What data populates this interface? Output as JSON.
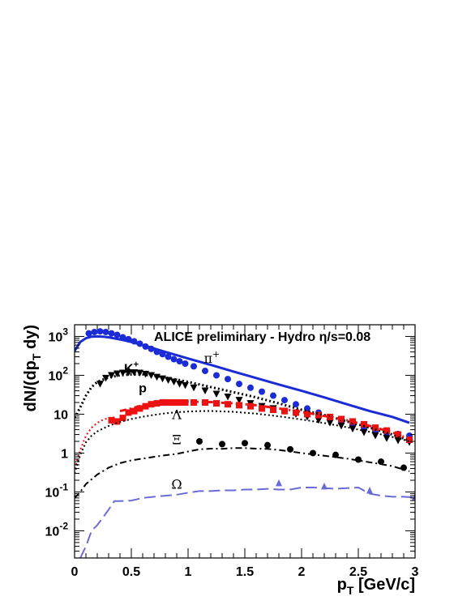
{
  "chart_data": {
    "type": "scatter",
    "title": "ALICE preliminary - Hydro η/s=0.08",
    "xlabel": "p_T [GeV/c]",
    "ylabel": "dN/(dp_T dy)",
    "xlim": [
      0,
      3
    ],
    "ylim": [
      0.002,
      2000
    ],
    "yscale": "log",
    "x_ticks": [
      "0",
      "0.5",
      "1",
      "1.5",
      "2",
      "2.5",
      "3"
    ],
    "y_ticks": [
      {
        "value": 0.01,
        "base": "10",
        "exp": "-2"
      },
      {
        "value": 0.1,
        "base": "10",
        "exp": "-1"
      },
      {
        "value": 1,
        "base": "1",
        "exp": ""
      },
      {
        "value": 10,
        "base": "10",
        "exp": ""
      },
      {
        "value": 100,
        "base": "10",
        "exp": "2"
      },
      {
        "value": 1000,
        "base": "10",
        "exp": "3"
      }
    ],
    "annotations": [
      {
        "id": "pi",
        "text": "π",
        "sup": "+",
        "x": 1.21,
        "y": 210,
        "style": "serif"
      },
      {
        "id": "k",
        "text": "K",
        "sup": "+",
        "x": 0.5,
        "y": 115,
        "style": "bold"
      },
      {
        "id": "p",
        "text": "p",
        "sup": "",
        "x": 0.6,
        "y": 36,
        "style": "bold"
      },
      {
        "id": "lambda",
        "text": "Λ",
        "sup": "",
        "x": 0.9,
        "y": 7.5,
        "style": "serif"
      },
      {
        "id": "xi",
        "text": "Ξ",
        "sup": "",
        "x": 0.9,
        "y": 1.7,
        "style": "serif"
      },
      {
        "id": "omega",
        "text": "Ω",
        "sup": "",
        "x": 0.9,
        "y": 0.12,
        "style": "serif"
      }
    ],
    "colors": {
      "pi": "#1b2bd6",
      "k": "#000000",
      "p": "#ee1111",
      "lambda": "#000000",
      "xi": "#000000",
      "omega": "#6b6bd6"
    },
    "series": [
      {
        "id": "pi_data",
        "marker": "circle",
        "color": "#1b2bd6",
        "points": [
          [
            0.125,
            1200
          ],
          [
            0.175,
            1300
          ],
          [
            0.225,
            1350
          ],
          [
            0.275,
            1300
          ],
          [
            0.325,
            1200
          ],
          [
            0.375,
            1100
          ],
          [
            0.425,
            950
          ],
          [
            0.475,
            850
          ],
          [
            0.525,
            750
          ],
          [
            0.575,
            650
          ],
          [
            0.625,
            550
          ],
          [
            0.675,
            480
          ],
          [
            0.725,
            400
          ],
          [
            0.775,
            350
          ],
          [
            0.825,
            300
          ],
          [
            0.875,
            260
          ],
          [
            0.925,
            230
          ],
          [
            0.975,
            200
          ],
          [
            1.05,
            170
          ],
          [
            1.15,
            130
          ],
          [
            1.25,
            100
          ],
          [
            1.35,
            80
          ],
          [
            1.45,
            60
          ],
          [
            1.55,
            48
          ],
          [
            1.65,
            38
          ],
          [
            1.75,
            30
          ],
          [
            1.85,
            23
          ],
          [
            1.95,
            18
          ],
          [
            2.05,
            14
          ],
          [
            2.15,
            11
          ],
          [
            2.25,
            8.5
          ],
          [
            2.35,
            6.5
          ],
          [
            2.45,
            5.2
          ],
          [
            2.55,
            4.3
          ],
          [
            2.65,
            3.6
          ],
          [
            2.75,
            3.3
          ],
          [
            2.85,
            3.1
          ],
          [
            2.95,
            2.8
          ]
        ]
      },
      {
        "id": "k_data",
        "marker": "triangle-down",
        "color": "#000000",
        "points": [
          [
            0.225,
            60
          ],
          [
            0.275,
            85
          ],
          [
            0.325,
            100
          ],
          [
            0.375,
            110
          ],
          [
            0.425,
            115
          ],
          [
            0.475,
            118
          ],
          [
            0.525,
            118
          ],
          [
            0.575,
            115
          ],
          [
            0.625,
            108
          ],
          [
            0.675,
            100
          ],
          [
            0.725,
            90
          ],
          [
            0.775,
            82
          ],
          [
            0.825,
            75
          ],
          [
            0.875,
            68
          ],
          [
            0.925,
            60
          ],
          [
            0.975,
            55
          ],
          [
            1.05,
            48
          ],
          [
            1.15,
            40
          ],
          [
            1.25,
            33
          ],
          [
            1.35,
            28
          ],
          [
            1.45,
            23
          ],
          [
            1.55,
            19
          ],
          [
            1.65,
            16
          ],
          [
            1.75,
            14
          ],
          [
            1.85,
            12
          ],
          [
            1.95,
            10
          ],
          [
            2.05,
            8.5
          ],
          [
            2.15,
            7
          ],
          [
            2.25,
            6
          ],
          [
            2.35,
            5
          ],
          [
            2.45,
            4.2
          ],
          [
            2.55,
            3.4
          ],
          [
            2.65,
            2.8
          ],
          [
            2.75,
            2.4
          ],
          [
            2.85,
            2.1
          ],
          [
            2.95,
            1.9
          ]
        ]
      },
      {
        "id": "p_data",
        "marker": "square",
        "color": "#ee1111",
        "points": [
          [
            0.325,
            7
          ],
          [
            0.375,
            6.5
          ],
          [
            0.425,
            8
          ],
          [
            0.475,
            11
          ],
          [
            0.525,
            12
          ],
          [
            0.575,
            14
          ],
          [
            0.625,
            16
          ],
          [
            0.675,
            18
          ],
          [
            0.725,
            19
          ],
          [
            0.775,
            20
          ],
          [
            0.825,
            20
          ],
          [
            0.875,
            20
          ],
          [
            0.925,
            20
          ],
          [
            0.975,
            20
          ],
          [
            1.05,
            20
          ],
          [
            1.15,
            20
          ],
          [
            1.25,
            19
          ],
          [
            1.35,
            18
          ],
          [
            1.45,
            17
          ],
          [
            1.55,
            16
          ],
          [
            1.65,
            14
          ],
          [
            1.75,
            13
          ],
          [
            1.85,
            12
          ],
          [
            1.95,
            11
          ],
          [
            2.05,
            10
          ],
          [
            2.15,
            9.5
          ],
          [
            2.25,
            8.5
          ],
          [
            2.35,
            7.5
          ],
          [
            2.45,
            6.5
          ],
          [
            2.55,
            5.5
          ],
          [
            2.65,
            4.5
          ],
          [
            2.75,
            3.8
          ],
          [
            2.85,
            3.0
          ],
          [
            2.95,
            2.2
          ]
        ]
      },
      {
        "id": "xi_data",
        "marker": "circle",
        "color": "#000000",
        "points": [
          [
            1.1,
            2.0
          ],
          [
            1.3,
            1.7
          ],
          [
            1.5,
            1.8
          ],
          [
            1.7,
            1.6
          ],
          [
            1.9,
            1.25
          ],
          [
            2.1,
            1.0
          ],
          [
            2.3,
            0.9
          ],
          [
            2.5,
            0.68
          ],
          [
            2.7,
            0.6
          ],
          [
            2.9,
            0.42
          ]
        ]
      },
      {
        "id": "omega_data",
        "marker": "triangle-up",
        "color": "#6b6bd6",
        "points": [
          [
            1.8,
            0.17
          ],
          [
            2.2,
            0.14
          ],
          [
            2.6,
            0.11
          ],
          [
            3.0,
            0.075
          ]
        ]
      },
      {
        "id": "pi_curve",
        "line": "solid",
        "color": "#1b2bd6",
        "width": 3,
        "points": [
          [
            0.0,
            420
          ],
          [
            0.05,
            720
          ],
          [
            0.1,
            900
          ],
          [
            0.15,
            990
          ],
          [
            0.2,
            1000
          ],
          [
            0.25,
            990
          ],
          [
            0.3,
            950
          ],
          [
            0.4,
            840
          ],
          [
            0.5,
            720
          ],
          [
            0.6,
            600
          ],
          [
            0.7,
            490
          ],
          [
            0.8,
            400
          ],
          [
            0.9,
            330
          ],
          [
            1.0,
            270
          ],
          [
            1.2,
            185
          ],
          [
            1.4,
            125
          ],
          [
            1.6,
            85
          ],
          [
            1.8,
            58
          ],
          [
            2.0,
            40
          ],
          [
            2.2,
            27
          ],
          [
            2.4,
            18
          ],
          [
            2.6,
            12
          ],
          [
            2.8,
            8.5
          ],
          [
            2.95,
            6
          ]
        ]
      },
      {
        "id": "k_curve",
        "line": "dotted",
        "color": "#000000",
        "width": 3,
        "points": [
          [
            0.0,
            8
          ],
          [
            0.05,
            15
          ],
          [
            0.1,
            30
          ],
          [
            0.15,
            50
          ],
          [
            0.2,
            68
          ],
          [
            0.3,
            88
          ],
          [
            0.4,
            100
          ],
          [
            0.5,
            105
          ],
          [
            0.6,
            105
          ],
          [
            0.7,
            98
          ],
          [
            0.8,
            88
          ],
          [
            0.9,
            78
          ],
          [
            1.0,
            68
          ],
          [
            1.2,
            50
          ],
          [
            1.4,
            37
          ],
          [
            1.6,
            27
          ],
          [
            1.8,
            19
          ],
          [
            2.0,
            13
          ],
          [
            2.2,
            9.5
          ],
          [
            2.4,
            6.5
          ],
          [
            2.6,
            4.5
          ],
          [
            2.8,
            3
          ],
          [
            2.95,
            2.1
          ]
        ]
      },
      {
        "id": "p_curve",
        "line": "dotted",
        "color": "#ee1111",
        "width": 2,
        "points": [
          [
            0.0,
            0.4
          ],
          [
            0.05,
            1.2
          ],
          [
            0.1,
            2.8
          ],
          [
            0.15,
            4.5
          ],
          [
            0.2,
            6
          ],
          [
            0.25,
            7.2
          ],
          [
            0.3,
            8
          ],
          [
            0.35,
            8.3
          ]
        ]
      },
      {
        "id": "p_curve2",
        "line": "dashdot",
        "color": "#ee1111",
        "width": 3,
        "points": [
          [
            0.4,
            12
          ],
          [
            0.5,
            14
          ],
          [
            0.6,
            17
          ],
          [
            0.7,
            19
          ],
          [
            0.8,
            20
          ],
          [
            0.9,
            21
          ],
          [
            1.0,
            21
          ],
          [
            1.2,
            20.5
          ],
          [
            1.4,
            19
          ],
          [
            1.6,
            17
          ],
          [
            1.8,
            14
          ],
          [
            2.0,
            11.5
          ],
          [
            2.2,
            9
          ],
          [
            2.4,
            7
          ],
          [
            2.6,
            5
          ],
          [
            2.8,
            3.4
          ],
          [
            2.95,
            2.3
          ]
        ]
      },
      {
        "id": "lambda_curve",
        "line": "dotted",
        "color": "#000000",
        "width": 2,
        "points": [
          [
            0.0,
            0.3
          ],
          [
            0.05,
            0.9
          ],
          [
            0.1,
            1.9
          ],
          [
            0.15,
            2.8
          ],
          [
            0.2,
            3.6
          ],
          [
            0.3,
            5
          ],
          [
            0.4,
            6.3
          ],
          [
            0.5,
            7.5
          ],
          [
            0.6,
            8.6
          ],
          [
            0.7,
            9.6
          ],
          [
            0.8,
            10.5
          ],
          [
            0.9,
            11.2
          ],
          [
            1.0,
            11.7
          ],
          [
            1.1,
            12
          ],
          [
            1.2,
            12.1
          ],
          [
            1.4,
            11.5
          ],
          [
            1.6,
            10.3
          ],
          [
            1.8,
            8.8
          ],
          [
            2.0,
            7.3
          ],
          [
            2.2,
            5.9
          ],
          [
            2.4,
            4.6
          ],
          [
            2.6,
            3.5
          ],
          [
            2.8,
            2.6
          ],
          [
            2.95,
            2.0
          ]
        ]
      },
      {
        "id": "xi_curve",
        "line": "dashdot",
        "color": "#000000",
        "width": 2,
        "points": [
          [
            0.0,
            0.07
          ],
          [
            0.05,
            0.1
          ],
          [
            0.1,
            0.16
          ],
          [
            0.2,
            0.28
          ],
          [
            0.3,
            0.42
          ],
          [
            0.4,
            0.55
          ],
          [
            0.5,
            0.65
          ],
          [
            0.6,
            0.72
          ],
          [
            0.7,
            0.8
          ],
          [
            0.8,
            0.88
          ],
          [
            0.9,
            0.95
          ],
          [
            1.0,
            1.1
          ],
          [
            1.1,
            1.25
          ],
          [
            1.2,
            1.3
          ],
          [
            1.3,
            1.28
          ],
          [
            1.4,
            1.35
          ],
          [
            1.5,
            1.35
          ],
          [
            1.6,
            1.3
          ],
          [
            1.7,
            1.28
          ],
          [
            1.8,
            1.2
          ],
          [
            1.9,
            1.1
          ],
          [
            2.0,
            1.0
          ],
          [
            2.2,
            0.85
          ],
          [
            2.4,
            0.72
          ],
          [
            2.6,
            0.58
          ],
          [
            2.8,
            0.46
          ],
          [
            2.95,
            0.34
          ]
        ]
      },
      {
        "id": "omega_curve",
        "line": "dashed",
        "color": "#6b6bd6",
        "width": 2,
        "points": [
          [
            0.05,
            0.002
          ],
          [
            0.1,
            0.004
          ],
          [
            0.15,
            0.01
          ],
          [
            0.2,
            0.014
          ],
          [
            0.25,
            0.022
          ],
          [
            0.3,
            0.035
          ],
          [
            0.35,
            0.058
          ],
          [
            0.4,
            0.058
          ],
          [
            0.5,
            0.06
          ],
          [
            0.6,
            0.07
          ],
          [
            0.7,
            0.075
          ],
          [
            0.8,
            0.08
          ],
          [
            0.9,
            0.085
          ],
          [
            1.0,
            0.095
          ],
          [
            1.1,
            0.105
          ],
          [
            1.2,
            0.105
          ],
          [
            1.3,
            0.11
          ],
          [
            1.4,
            0.11
          ],
          [
            1.5,
            0.115
          ],
          [
            1.6,
            0.115
          ],
          [
            1.7,
            0.12
          ],
          [
            1.8,
            0.115
          ],
          [
            1.9,
            0.115
          ],
          [
            2.0,
            0.13
          ],
          [
            2.1,
            0.13
          ],
          [
            2.2,
            0.125
          ],
          [
            2.3,
            0.12
          ],
          [
            2.4,
            0.125
          ],
          [
            2.5,
            0.13
          ],
          [
            2.6,
            0.09
          ],
          [
            2.7,
            0.08
          ],
          [
            2.8,
            0.075
          ],
          [
            2.9,
            0.075
          ],
          [
            3.0,
            0.072
          ]
        ]
      }
    ]
  }
}
